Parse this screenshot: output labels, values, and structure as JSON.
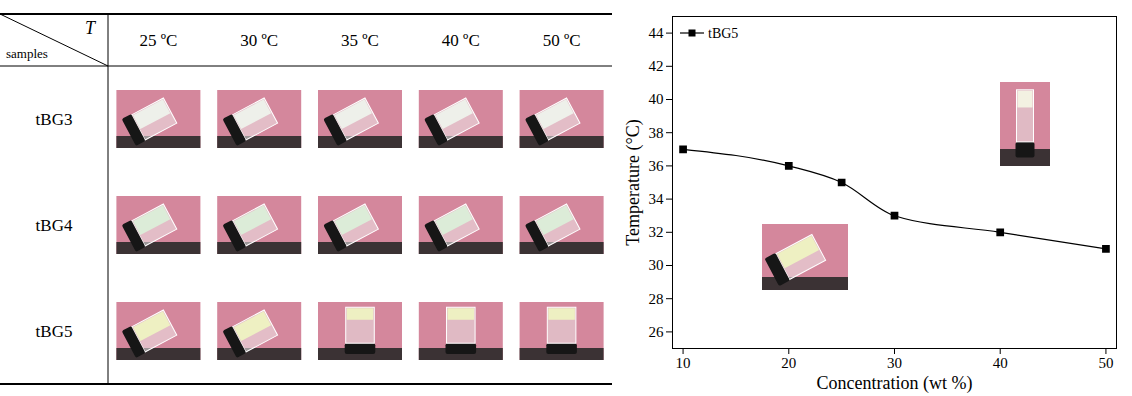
{
  "table": {
    "corner": {
      "column_head": "T",
      "row_head": "samples"
    },
    "columns": [
      "25 ºC",
      "30 ºC",
      "35 ºC",
      "40 ºC",
      "50 ºC"
    ],
    "rows": [
      {
        "label": "tBG3",
        "inverted": [
          false,
          false,
          false,
          false,
          false
        ]
      },
      {
        "label": "tBG4",
        "inverted": [
          false,
          false,
          false,
          false,
          false
        ]
      },
      {
        "label": "tBG5",
        "inverted": [
          false,
          false,
          true,
          true,
          true
        ]
      }
    ]
  },
  "chart_data": {
    "type": "line",
    "xlabel": "Concentration (wt %)",
    "ylabel": "Temperature (°C)",
    "x": [
      10,
      20,
      25,
      30,
      40,
      50
    ],
    "series": [
      {
        "name": "tBG5",
        "color": "#000000",
        "marker": "square",
        "line_style": "smooth",
        "values": [
          37,
          36,
          35,
          33,
          32,
          31
        ]
      }
    ],
    "xlim": [
      9,
      51
    ],
    "ylim": [
      25,
      45
    ],
    "xticks": [
      10,
      20,
      30,
      40,
      50
    ],
    "yticks": [
      26,
      28,
      30,
      32,
      34,
      36,
      38,
      40,
      42,
      44
    ],
    "legend": "top-left"
  }
}
